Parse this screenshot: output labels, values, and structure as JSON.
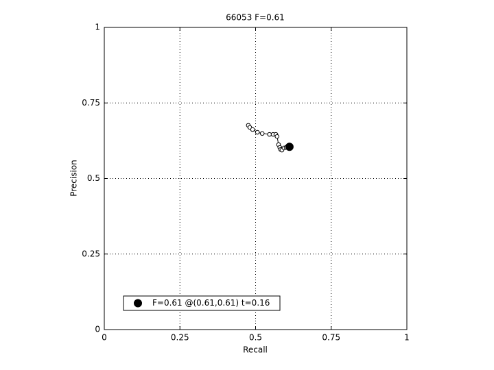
{
  "chart_data": {
    "type": "line",
    "title": "66053 F=0.61",
    "xlabel": "Recall",
    "ylabel": "Precision",
    "xlim": [
      0,
      1
    ],
    "ylim": [
      0,
      1
    ],
    "xticks": [
      0,
      0.25,
      0.5,
      0.75,
      1
    ],
    "yticks": [
      0,
      0.25,
      0.5,
      0.75,
      1
    ],
    "grid": true,
    "legend": "lower left",
    "series": [
      {
        "color": "#000000",
        "marker": "open-circle",
        "x": [
          0.476,
          0.481,
          0.49,
          0.506,
          0.522,
          0.546,
          0.558,
          0.567,
          0.571,
          0.576,
          0.58,
          0.583,
          0.587,
          0.594,
          0.601
        ],
        "values": [
          0.676,
          0.669,
          0.662,
          0.653,
          0.649,
          0.646,
          0.646,
          0.646,
          0.639,
          0.612,
          0.603,
          0.596,
          0.594,
          0.601,
          0.603
        ]
      },
      {
        "name": "F=0.61 @(0.61,0.61) t=0.16",
        "color": "#000000",
        "marker": "filled-circle",
        "x": [
          0.612
        ],
        "values": [
          0.605
        ]
      }
    ]
  }
}
